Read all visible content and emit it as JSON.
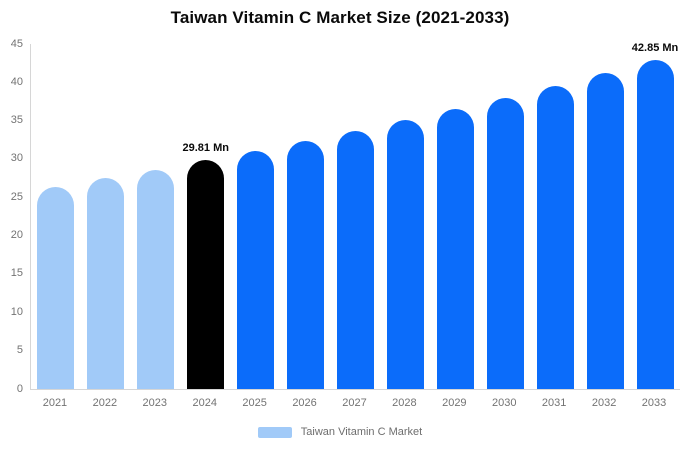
{
  "chart_data": {
    "type": "bar",
    "title": "Taiwan Vitamin C Market Size (2021-2033)",
    "xlabel": "",
    "ylabel": "",
    "categories": [
      "2021",
      "2022",
      "2023",
      "2024",
      "2025",
      "2026",
      "2027",
      "2028",
      "2029",
      "2030",
      "2031",
      "2032",
      "2033"
    ],
    "values": [
      26.41,
      27.5,
      28.63,
      29.81,
      31.04,
      32.32,
      33.65,
      35.04,
      36.48,
      37.98,
      39.55,
      41.18,
      42.85
    ],
    "unit": "Mn",
    "data_labels": [
      "",
      "",
      "",
      "29.81 Mn",
      "",
      "",
      "",
      "",
      "",
      "",
      "",
      "",
      "42.85 Mn"
    ],
    "bar_colors": [
      "#A1CAF8",
      "#A1CAF8",
      "#A1CAF8",
      "#000000",
      "#0B6CFA",
      "#0B6CFA",
      "#0B6CFA",
      "#0B6CFA",
      "#0B6CFA",
      "#0B6CFA",
      "#0B6CFA",
      "#0B6CFA",
      "#0B6CFA"
    ],
    "ylim": [
      0,
      45
    ],
    "yticks": [
      0,
      5,
      10,
      15,
      20,
      25,
      30,
      35,
      40,
      45
    ],
    "grid": false,
    "legend": [
      {
        "label": "Taiwan Vitamin C Market",
        "color": "#A1CAF8"
      }
    ],
    "legend_position": "bottom",
    "colors": {
      "historical_bar": "#A1CAF8",
      "base_year_bar": "#000000",
      "forecast_bar": "#0B6CFA",
      "axis_line": "#d6d6d6",
      "tick_text": "#737373",
      "title_text": "#0a0a0a"
    }
  }
}
